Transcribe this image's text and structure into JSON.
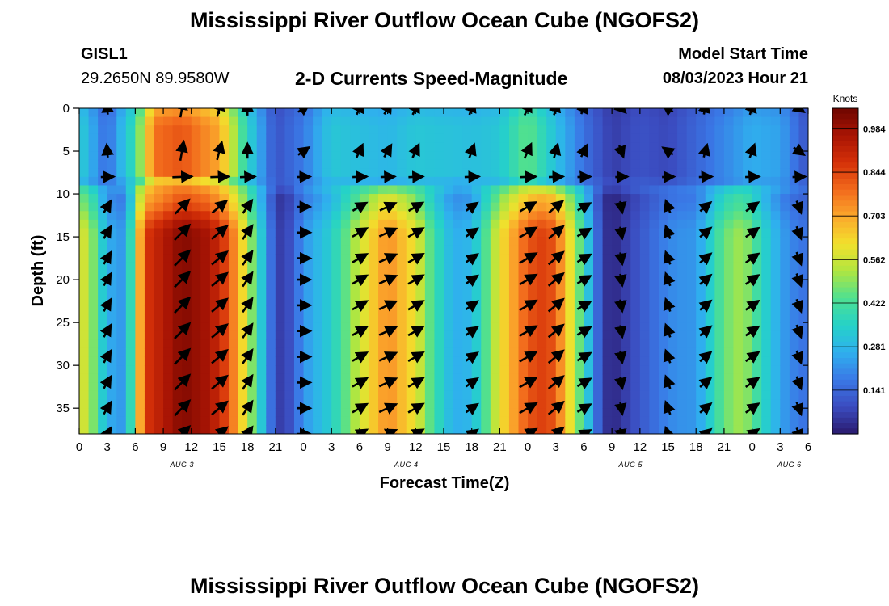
{
  "header": {
    "title": "Mississippi River Outflow Ocean Cube (NGOFS2)",
    "station_id": "GISL1",
    "station_coords": "29.2650N  89.9580W",
    "subtitle": "2-D Currents Speed-Magnitude",
    "model_start_label": "Model Start Time",
    "model_start_value": "08/03/2023 Hour 21"
  },
  "footer": {
    "title": "Mississippi River Outflow Ocean Cube (NGOFS2)"
  },
  "chart_data": {
    "type": "heatmap",
    "title": "2-D Currents Speed-Magnitude",
    "xlabel": "Forecast Time(Z)",
    "ylabel": "Depth (ft)",
    "x_hours_range": [
      0,
      78
    ],
    "y_range": [
      0,
      38
    ],
    "y_inverted": true,
    "x_ticks": [
      {
        "h": 0,
        "label": "0"
      },
      {
        "h": 3,
        "label": "3"
      },
      {
        "h": 6,
        "label": "6"
      },
      {
        "h": 9,
        "label": "9"
      },
      {
        "h": 12,
        "label": "12"
      },
      {
        "h": 15,
        "label": "15"
      },
      {
        "h": 18,
        "label": "18"
      },
      {
        "h": 21,
        "label": "21"
      },
      {
        "h": 24,
        "label": "0"
      },
      {
        "h": 27,
        "label": "3"
      },
      {
        "h": 30,
        "label": "6"
      },
      {
        "h": 33,
        "label": "9"
      },
      {
        "h": 36,
        "label": "12"
      },
      {
        "h": 39,
        "label": "15"
      },
      {
        "h": 42,
        "label": "18"
      },
      {
        "h": 45,
        "label": "21"
      },
      {
        "h": 48,
        "label": "0"
      },
      {
        "h": 51,
        "label": "3"
      },
      {
        "h": 54,
        "label": "6"
      },
      {
        "h": 57,
        "label": "9"
      },
      {
        "h": 60,
        "label": "12"
      },
      {
        "h": 63,
        "label": "15"
      },
      {
        "h": 66,
        "label": "18"
      },
      {
        "h": 69,
        "label": "21"
      },
      {
        "h": 72,
        "label": "0"
      },
      {
        "h": 75,
        "label": "3"
      },
      {
        "h": 78,
        "label": "6"
      }
    ],
    "date_labels": [
      {
        "h": 11,
        "label": "AUG 3"
      },
      {
        "h": 35,
        "label": "AUG 4"
      },
      {
        "h": 59,
        "label": "AUG 5"
      },
      {
        "h": 76,
        "label": "AUG 6"
      }
    ],
    "y_ticks": [
      0,
      5,
      10,
      15,
      20,
      25,
      30,
      35
    ],
    "colorbar": {
      "unit": "Knots",
      "min": 0,
      "max": 1.05,
      "ticks": [
        "0.984",
        "0.844",
        "0.703",
        "0.562",
        "0.422",
        "0.281",
        "0.141"
      ],
      "tick_values": [
        0.984,
        0.844,
        0.703,
        0.562,
        0.422,
        0.281,
        0.141
      ],
      "colormap": [
        "#2a1a6e",
        "#3b4cc0",
        "#3a78e6",
        "#2fb0ee",
        "#25d2c8",
        "#4fe090",
        "#b0e640",
        "#f2e02c",
        "#fba82c",
        "#f26a1c",
        "#d43008",
        "#a81404",
        "#6e0600"
      ]
    },
    "series": [
      {
        "layer": "surface",
        "depth_range": [
          0,
          8
        ],
        "values_h": [
          0,
          3,
          6,
          8,
          11,
          15,
          18,
          21,
          24,
          27,
          33,
          36,
          42,
          45,
          48,
          51,
          54,
          57,
          60,
          63,
          66,
          69,
          72,
          75,
          78
        ],
        "values": [
          0.34,
          0.15,
          0.4,
          0.78,
          0.82,
          0.7,
          0.36,
          0.1,
          0.18,
          0.32,
          0.28,
          0.32,
          0.3,
          0.32,
          0.46,
          0.3,
          0.16,
          0.06,
          0.1,
          0.08,
          0.14,
          0.2,
          0.26,
          0.24,
          0.1
        ]
      },
      {
        "layer": "bottom",
        "depth_range": [
          10,
          38
        ],
        "values_h": [
          0,
          1,
          3,
          5,
          7,
          11,
          14,
          16,
          18,
          20,
          21,
          22,
          24,
          27,
          30,
          33,
          36,
          38,
          40,
          42,
          45,
          48,
          50,
          51,
          53,
          55,
          56,
          57,
          59,
          61,
          63,
          65,
          66,
          67,
          69,
          71,
          74,
          76,
          78
        ],
        "values": [
          0.58,
          0.55,
          0.26,
          0.22,
          0.86,
          1.02,
          0.96,
          0.82,
          0.56,
          0.24,
          0.08,
          0.05,
          0.22,
          0.34,
          0.56,
          0.74,
          0.6,
          0.4,
          0.26,
          0.28,
          0.6,
          0.82,
          0.86,
          0.8,
          0.54,
          0.22,
          0.06,
          0.02,
          0.08,
          0.14,
          0.2,
          0.22,
          0.22,
          0.3,
          0.46,
          0.52,
          0.3,
          0.2,
          0.16
        ]
      }
    ],
    "vectors": {
      "depths": [
        0,
        5,
        8,
        11.5,
        14.5,
        17.5,
        20,
        23,
        26,
        29,
        32,
        35,
        38
      ],
      "times": [
        3,
        11,
        15,
        18,
        24,
        30,
        33,
        36,
        42,
        48,
        51,
        54,
        58,
        63,
        67,
        72,
        77
      ],
      "direction_deg_by_time": [
        300,
        315,
        320,
        305,
        0,
        330,
        335,
        330,
        325,
        330,
        320,
        330,
        80,
        250,
        320,
        325,
        70
      ]
    }
  }
}
